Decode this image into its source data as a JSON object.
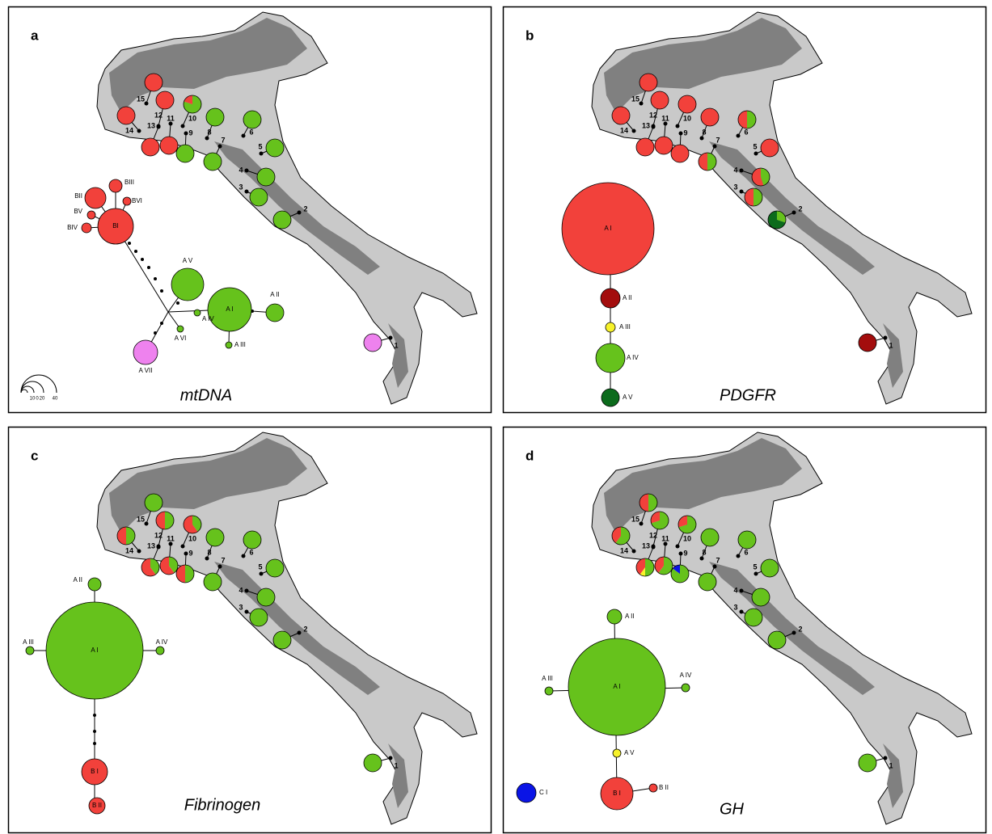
{
  "panels": [
    {
      "letter": "a",
      "title": "mtDNA",
      "sites": [
        "1",
        "2",
        "3",
        "4",
        "5",
        "6",
        "7",
        "8",
        "9",
        "10",
        "11",
        "12",
        "13",
        "14",
        "15"
      ],
      "haplotypes": [
        "BI",
        "BII",
        "BIII",
        "BV",
        "BVI",
        "BIV",
        "A V",
        "A I",
        "A II",
        "A IV",
        "A VI",
        "A III",
        "A VII"
      ],
      "scale": [
        "0",
        "10",
        "20",
        "40"
      ]
    },
    {
      "letter": "b",
      "title": "PDGFR",
      "sites": [
        "1",
        "2",
        "3",
        "4",
        "5",
        "6",
        "7",
        "8",
        "9",
        "10",
        "11",
        "12",
        "13",
        "14",
        "15"
      ],
      "haplotypes": [
        "A I",
        "A II",
        "A III",
        "A IV",
        "A V"
      ]
    },
    {
      "letter": "c",
      "title": "Fibrinogen",
      "sites": [
        "1",
        "2",
        "3",
        "4",
        "5",
        "6",
        "7",
        "8",
        "9",
        "10",
        "11",
        "12",
        "13",
        "14",
        "15"
      ],
      "haplotypes": [
        "A I",
        "A II",
        "A III",
        "A IV",
        "B I",
        "B II"
      ]
    },
    {
      "letter": "d",
      "title": "GH",
      "sites": [
        "1",
        "2",
        "3",
        "4",
        "5",
        "6",
        "7",
        "8",
        "9",
        "10",
        "11",
        "12",
        "13",
        "14",
        "15"
      ],
      "haplotypes": [
        "A I",
        "A II",
        "A III",
        "A IV",
        "A V",
        "B I",
        "B II",
        "C I"
      ]
    }
  ]
}
